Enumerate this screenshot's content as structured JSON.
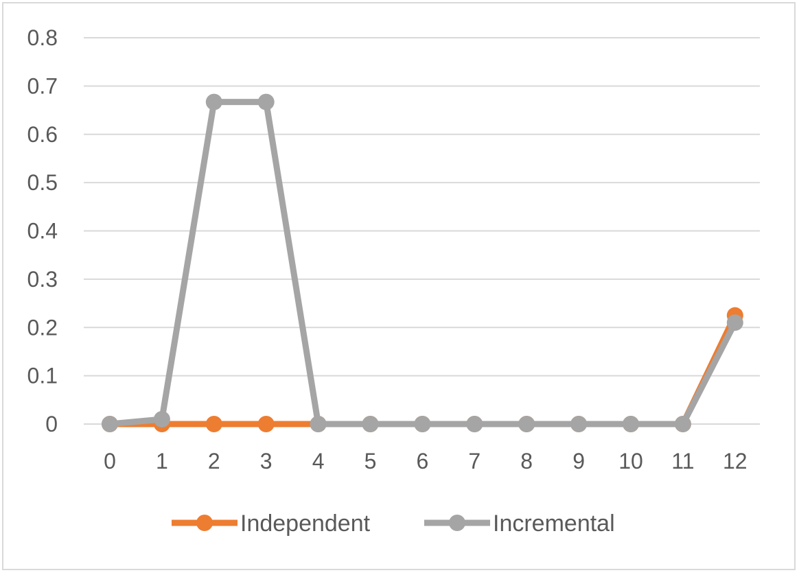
{
  "chart_data": {
    "type": "line",
    "title": "",
    "xlabel": "",
    "ylabel": "",
    "x": [
      0,
      1,
      2,
      3,
      4,
      5,
      6,
      7,
      8,
      9,
      10,
      11,
      12
    ],
    "x_tick_labels": [
      "0",
      "1",
      "2",
      "3",
      "4",
      "5",
      "6",
      "7",
      "8",
      "9",
      "10",
      "11",
      "12"
    ],
    "ylim": [
      0,
      0.8
    ],
    "y_ticks": [
      0,
      0.1,
      0.2,
      0.3,
      0.4,
      0.5,
      0.6,
      0.7,
      0.8
    ],
    "y_tick_labels": [
      "0",
      "0.1",
      "0.2",
      "0.3",
      "0.4",
      "0.5",
      "0.6",
      "0.7",
      "0.8"
    ],
    "grid": true,
    "legend_position": "bottom",
    "series": [
      {
        "name": "Independent",
        "color": "#ED7D31",
        "values": [
          0,
          0,
          0,
          0,
          0,
          0,
          0,
          0,
          0,
          0,
          0,
          0,
          0.225
        ]
      },
      {
        "name": "Incremental",
        "color": "#A5A5A5",
        "values": [
          0,
          0.01,
          0.667,
          0.667,
          0,
          0,
          0,
          0,
          0,
          0,
          0,
          0,
          0.21
        ]
      }
    ],
    "gridline_color": "#d9d9d9"
  }
}
